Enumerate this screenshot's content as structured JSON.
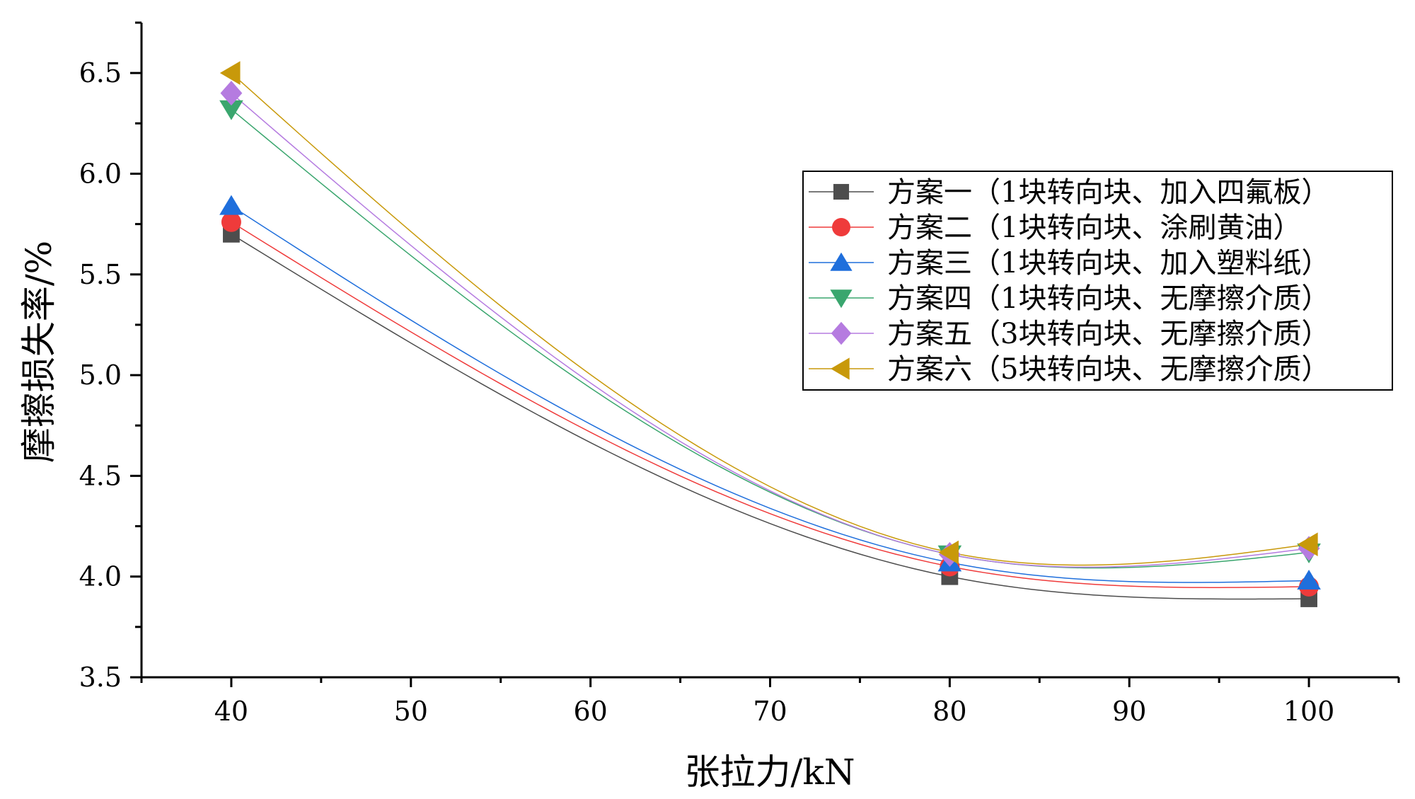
{
  "chart_data": {
    "type": "line",
    "title": "",
    "xlabel": "张拉力/kN",
    "ylabel": "摩擦损失率/%",
    "xlim": [
      35,
      105
    ],
    "ylim": [
      3.5,
      6.75
    ],
    "x_ticks": [
      "40",
      "50",
      "60",
      "70",
      "80",
      "90",
      "100"
    ],
    "y_ticks": [
      "3.5",
      "4.0",
      "4.5",
      "5.0",
      "5.5",
      "6.0",
      "6.5"
    ],
    "grid": false,
    "legend_position": "top-right",
    "x": [
      40,
      80,
      100
    ],
    "series": [
      {
        "name": "方案一（1块转向块、加入四氟板）",
        "marker": "square",
        "color": "#4d4d4d",
        "values": [
          5.7,
          4.0,
          3.89
        ]
      },
      {
        "name": "方案二（1块转向块、涂刷黄油）",
        "marker": "circle",
        "color": "#ef3b3b",
        "values": [
          5.76,
          4.05,
          3.95
        ]
      },
      {
        "name": "方案三（1块转向块、加入塑料纸）",
        "marker": "triangle-up",
        "color": "#1f6fdc",
        "values": [
          5.84,
          4.07,
          3.98
        ]
      },
      {
        "name": "方案四（1块转向块、无摩擦介质）",
        "marker": "triangle-down",
        "color": "#3aa66e",
        "values": [
          6.32,
          4.11,
          4.12
        ]
      },
      {
        "name": "方案五（3块转向块、无摩擦介质）",
        "marker": "diamond",
        "color": "#b57be0",
        "values": [
          6.4,
          4.11,
          4.14
        ]
      },
      {
        "name": "方案六（5块转向块、无摩擦介质）",
        "marker": "triangle-left",
        "color": "#c8990a",
        "values": [
          6.5,
          4.12,
          4.16
        ]
      }
    ]
  }
}
